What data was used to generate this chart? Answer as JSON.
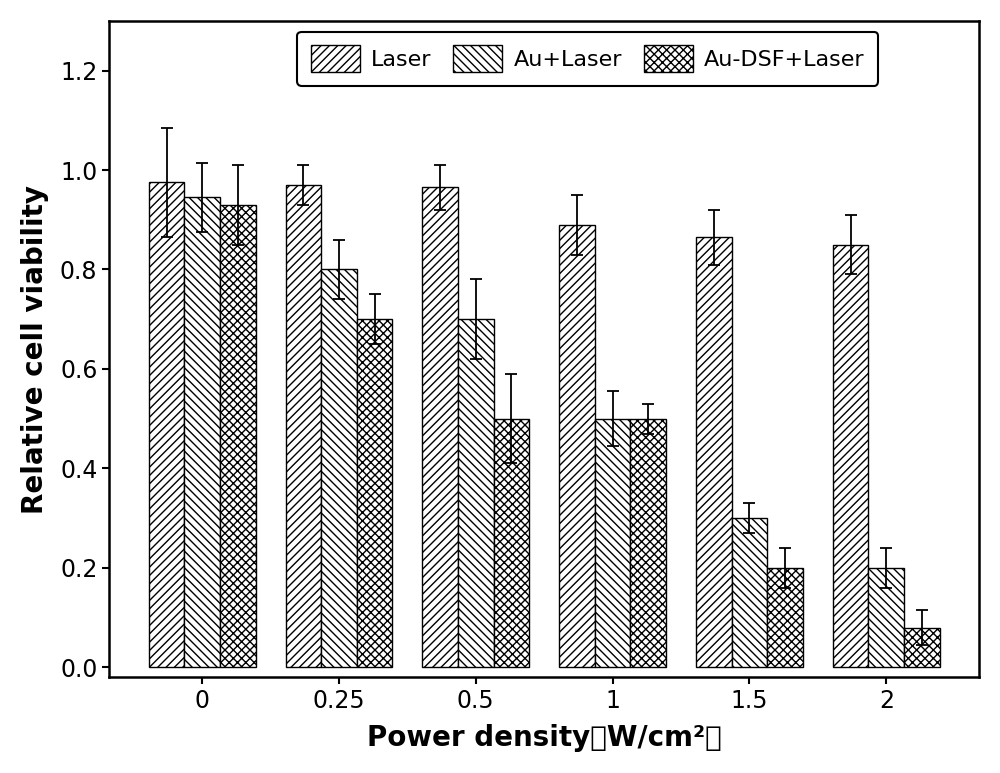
{
  "categories": [
    "0",
    "0.25",
    "0.5",
    "1",
    "1.5",
    "2"
  ],
  "laser_values": [
    0.975,
    0.97,
    0.965,
    0.89,
    0.865,
    0.85
  ],
  "laser_errors": [
    0.11,
    0.04,
    0.045,
    0.06,
    0.055,
    0.06
  ],
  "au_laser_values": [
    0.945,
    0.8,
    0.7,
    0.5,
    0.3,
    0.2
  ],
  "au_laser_errors": [
    0.07,
    0.06,
    0.08,
    0.055,
    0.03,
    0.04
  ],
  "au_dsf_laser_values": [
    0.93,
    0.7,
    0.5,
    0.5,
    0.2,
    0.08
  ],
  "au_dsf_laser_errors": [
    0.08,
    0.05,
    0.09,
    0.03,
    0.04,
    0.035
  ],
  "ylabel": "Relative cell viability",
  "xlabel": "Power density（W/cm²）",
  "ylim": [
    -0.02,
    1.3
  ],
  "yticks": [
    0.0,
    0.2,
    0.4,
    0.6,
    0.8,
    1.0,
    1.2
  ],
  "legend_labels": [
    "Laser",
    "Au+Laser",
    "Au-DSF+Laser"
  ],
  "bar_width": 0.26,
  "background_color": "#ffffff",
  "figsize": [
    10.0,
    7.73
  ],
  "dpi": 100
}
